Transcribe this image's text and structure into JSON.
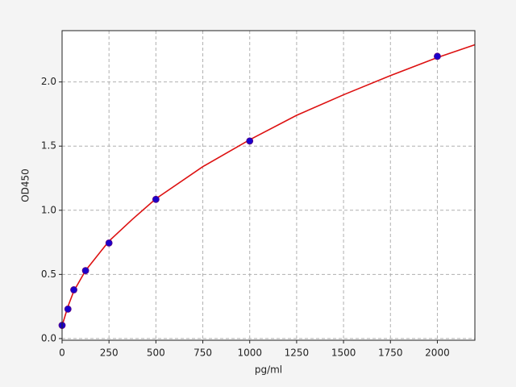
{
  "chart_data": {
    "type": "scatter",
    "xlabel": "pg/ml",
    "ylabel": "OD450",
    "xlim": [
      0,
      2200
    ],
    "ylim": [
      -0.013,
      2.4
    ],
    "xticks": [
      0,
      250,
      500,
      750,
      1000,
      1250,
      1500,
      1750,
      2000
    ],
    "yticks": [
      {
        "value": 0,
        "label": "0.0"
      },
      0.5,
      {
        "value": 1,
        "label": "1.0"
      },
      1.5,
      {
        "value": 2,
        "label": "2.0"
      }
    ],
    "grid": true,
    "series": [
      {
        "kind": "line",
        "color": "#dd1111",
        "x": [
          0,
          31.25,
          62.5,
          125,
          250,
          375,
          500,
          750,
          1000,
          1250,
          1500,
          1750,
          2000,
          2200
        ],
        "values": [
          0.1,
          0.25,
          0.37,
          0.53,
          0.76,
          0.93,
          1.09,
          1.34,
          1.55,
          1.74,
          1.9,
          2.05,
          2.19,
          2.29
        ]
      },
      {
        "kind": "marker",
        "color": "#1a00cc",
        "x": [
          0,
          31.25,
          62.5,
          125,
          250,
          500,
          1000,
          2000
        ],
        "values": [
          0.103,
          0.23,
          0.38,
          0.53,
          0.745,
          1.085,
          1.54,
          2.2
        ]
      }
    ]
  }
}
